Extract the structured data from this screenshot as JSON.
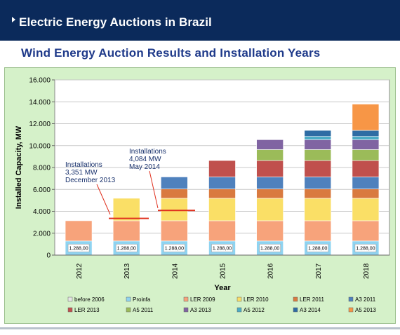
{
  "header": {
    "title": "Electric Energy Auctions in Brazil"
  },
  "subtitle": "Wind Energy Auction Results and Installation Years",
  "chart_data": {
    "type": "bar",
    "stacked": true,
    "categories": [
      "2012",
      "2013",
      "2014",
      "2015",
      "2016",
      "2017",
      "2018"
    ],
    "ylabel": "Installed Capacity, MW",
    "xlabel": "Year",
    "ylim": [
      0,
      16000
    ],
    "ytick_values": [
      0,
      2000,
      4000,
      6000,
      8000,
      10000,
      12000,
      14000,
      16000
    ],
    "ytick_labels": [
      "0",
      "2.000",
      "4.000",
      "6.000",
      "8.000",
      "10.000",
      "12.000",
      "14.000",
      "16.000"
    ],
    "grid": true,
    "legend_position": "bottom",
    "series": [
      {
        "name": "before 2006",
        "color": "#e6e6e6",
        "values": [
          0,
          0,
          0,
          0,
          0,
          0,
          0
        ]
      },
      {
        "name": "Proinfa",
        "color": "#8fd3f0",
        "values": [
          1288,
          1288,
          1288,
          1288,
          1288,
          1288,
          1288
        ]
      },
      {
        "name": "LER 2009",
        "color": "#f7a37b",
        "values": [
          1850,
          1850,
          1850,
          1850,
          1850,
          1850,
          1850
        ]
      },
      {
        "name": "LER 2010",
        "color": "#fadf66",
        "values": [
          0,
          2050,
          2050,
          2050,
          2050,
          2050,
          2050
        ]
      },
      {
        "name": "LER 2011",
        "color": "#d97a3f",
        "values": [
          0,
          0,
          850,
          850,
          850,
          850,
          850
        ]
      },
      {
        "name": "A3 2011",
        "color": "#4f81bd",
        "values": [
          0,
          0,
          1100,
          1100,
          1100,
          1100,
          1100
        ]
      },
      {
        "name": "LER 2013",
        "color": "#c0504d",
        "values": [
          0,
          0,
          0,
          1500,
          1500,
          1500,
          1500
        ]
      },
      {
        "name": "A5 2011",
        "color": "#9bbb59",
        "values": [
          0,
          0,
          0,
          0,
          1000,
          1000,
          1000
        ]
      },
      {
        "name": "A3 2013",
        "color": "#8064a2",
        "values": [
          0,
          0,
          0,
          0,
          900,
          900,
          900
        ]
      },
      {
        "name": "A5 2012",
        "color": "#4bacc6",
        "values": [
          0,
          0,
          0,
          0,
          0,
          300,
          300
        ]
      },
      {
        "name": "A3 2014",
        "color": "#2e6ca4",
        "values": [
          0,
          0,
          0,
          0,
          0,
          550,
          550
        ]
      },
      {
        "name": "A5 2013",
        "color": "#f79646",
        "values": [
          0,
          0,
          0,
          0,
          0,
          0,
          2400
        ]
      }
    ],
    "data_label": "1.288,00",
    "annotations": [
      {
        "lines": [
          "Installations",
          "3,351 MW",
          "December 2013"
        ],
        "value": 3351
      },
      {
        "lines": [
          "Installations",
          "4,084 MW",
          "May 2014"
        ],
        "value": 4084
      }
    ],
    "marker_line_color": "#e0301e"
  }
}
